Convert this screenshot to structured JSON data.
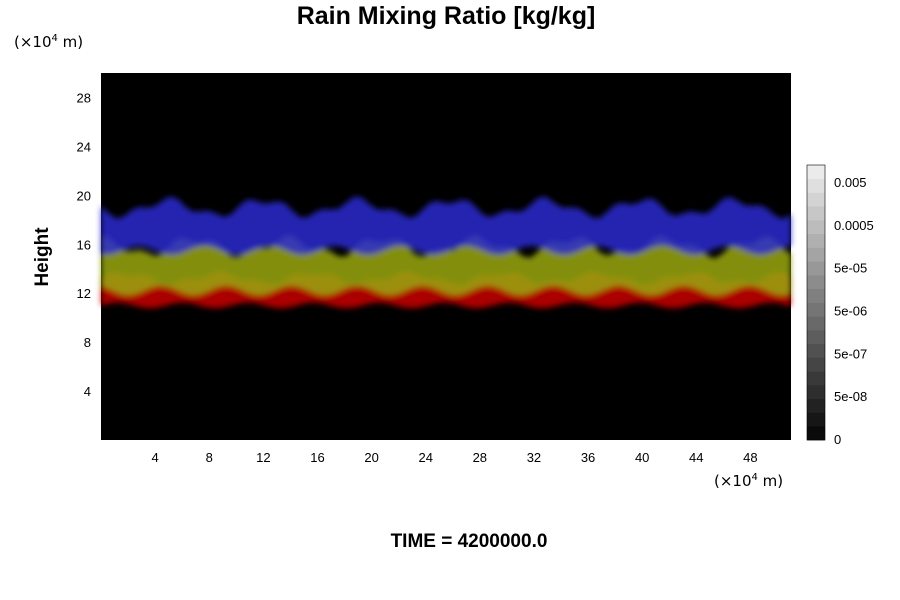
{
  "chart_data": {
    "type": "heatmap",
    "title": "Rain Mixing Ratio [kg/kg]",
    "ylabel": "Height",
    "xlabel": "",
    "x_unit": {
      "prefix": "(×10",
      "exp": "4",
      "suffix": " m)"
    },
    "y_unit": {
      "prefix": "(×10",
      "exp": "4",
      "suffix": " m)"
    },
    "x_ticks": [
      "4",
      "8",
      "12",
      "16",
      "20",
      "24",
      "28",
      "32",
      "36",
      "40",
      "44",
      "48"
    ],
    "y_ticks": [
      "4",
      "8",
      "12",
      "16",
      "20",
      "24",
      "28"
    ],
    "xlim": [
      0,
      51
    ],
    "ylim": [
      0,
      30
    ],
    "colorbar": {
      "labels": [
        "0",
        "5e-08",
        "5e-07",
        "5e-06",
        "5e-05",
        "0.0005",
        "0.005"
      ],
      "levels": 20
    },
    "background_color": "#000000",
    "layers": [
      {
        "color": "#c80000",
        "y_bottom": 11.0,
        "y_top": 13.2
      },
      {
        "color": "#9aa80a",
        "y_bottom": 12.2,
        "y_top": 15.8
      },
      {
        "color": "#2a2ad0",
        "y_bottom": 15.5,
        "y_top": 19.0
      }
    ],
    "time_label": "TIME = 4200000.0"
  }
}
